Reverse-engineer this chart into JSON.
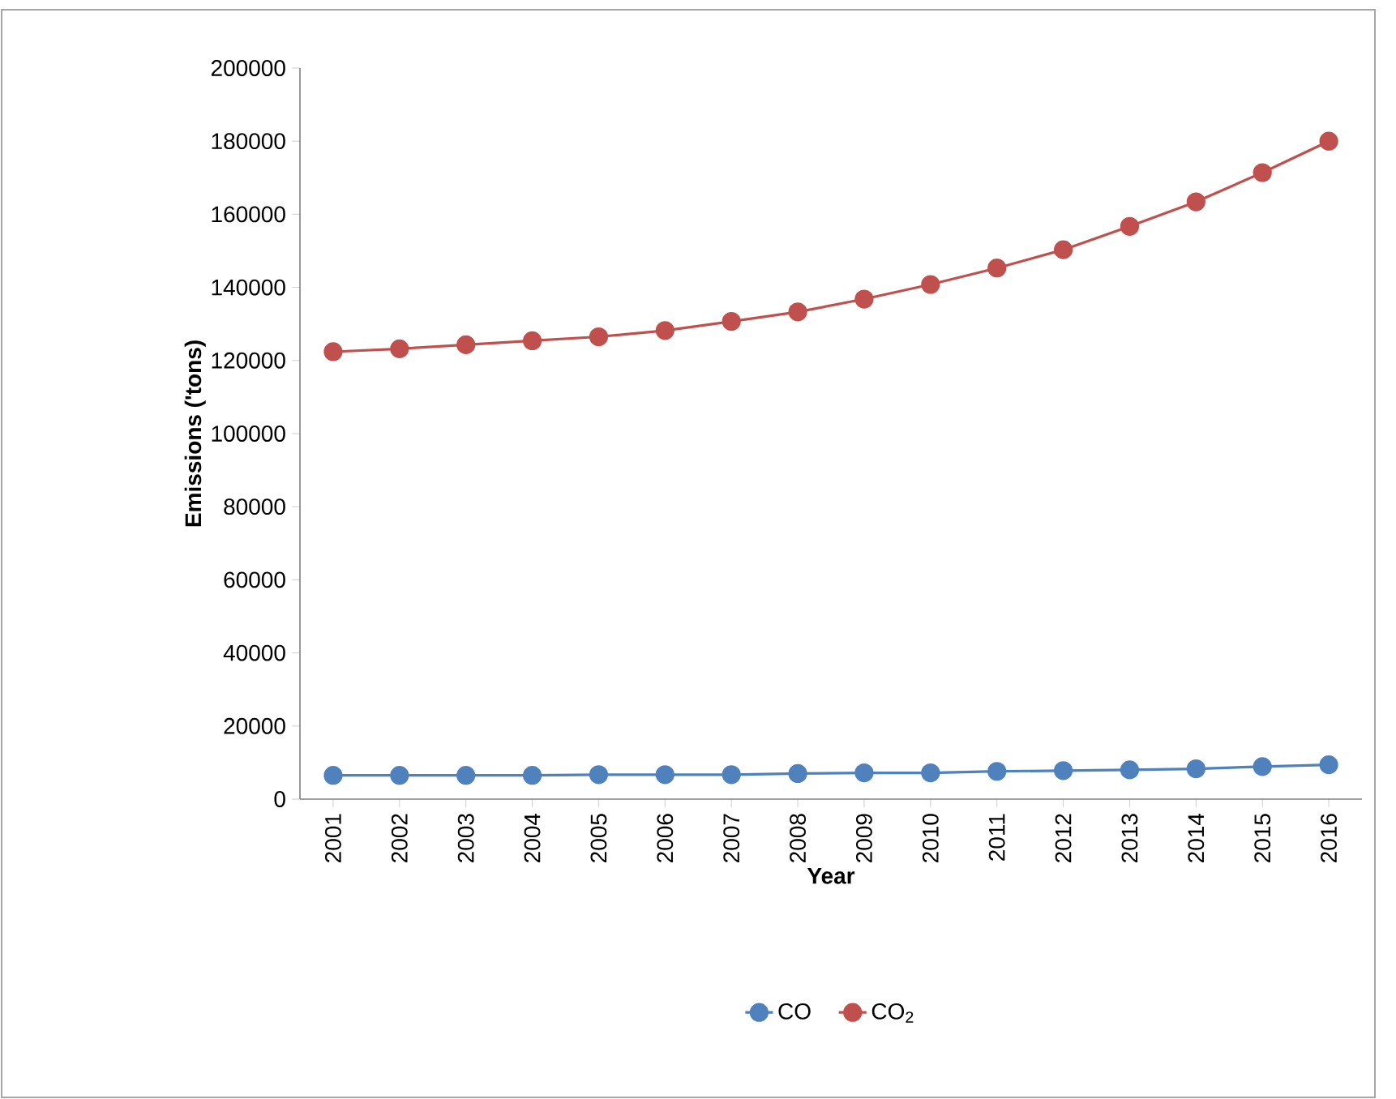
{
  "chart_data": {
    "type": "line",
    "xlabel": "Year",
    "ylabel": "Emissions ('tons)",
    "categories": [
      "2001",
      "2002",
      "2003",
      "2004",
      "2005",
      "2006",
      "2007",
      "2008",
      "2009",
      "2010",
      "2011",
      "2012",
      "2013",
      "2014",
      "2015",
      "2016"
    ],
    "series": [
      {
        "name": "CO",
        "color": "#4f81bd",
        "values": [
          6500,
          6500,
          6500,
          6500,
          6700,
          6700,
          6700,
          7000,
          7200,
          7200,
          7600,
          7800,
          8000,
          8300,
          8900,
          9400
        ]
      },
      {
        "name": "CO$_{2}$",
        "color": "#c0504d",
        "values": [
          122400,
          123200,
          124300,
          125400,
          126500,
          128200,
          130700,
          133300,
          136800,
          140800,
          145300,
          150300,
          156700,
          163400,
          171400,
          180000
        ]
      }
    ],
    "ylim": [
      0,
      200000
    ],
    "yticks": [
      0,
      20000,
      40000,
      60000,
      80000,
      100000,
      120000,
      140000,
      160000,
      180000,
      200000
    ],
    "grid": false,
    "legend": "bottom",
    "marker": "circle",
    "line_style": "solid"
  }
}
